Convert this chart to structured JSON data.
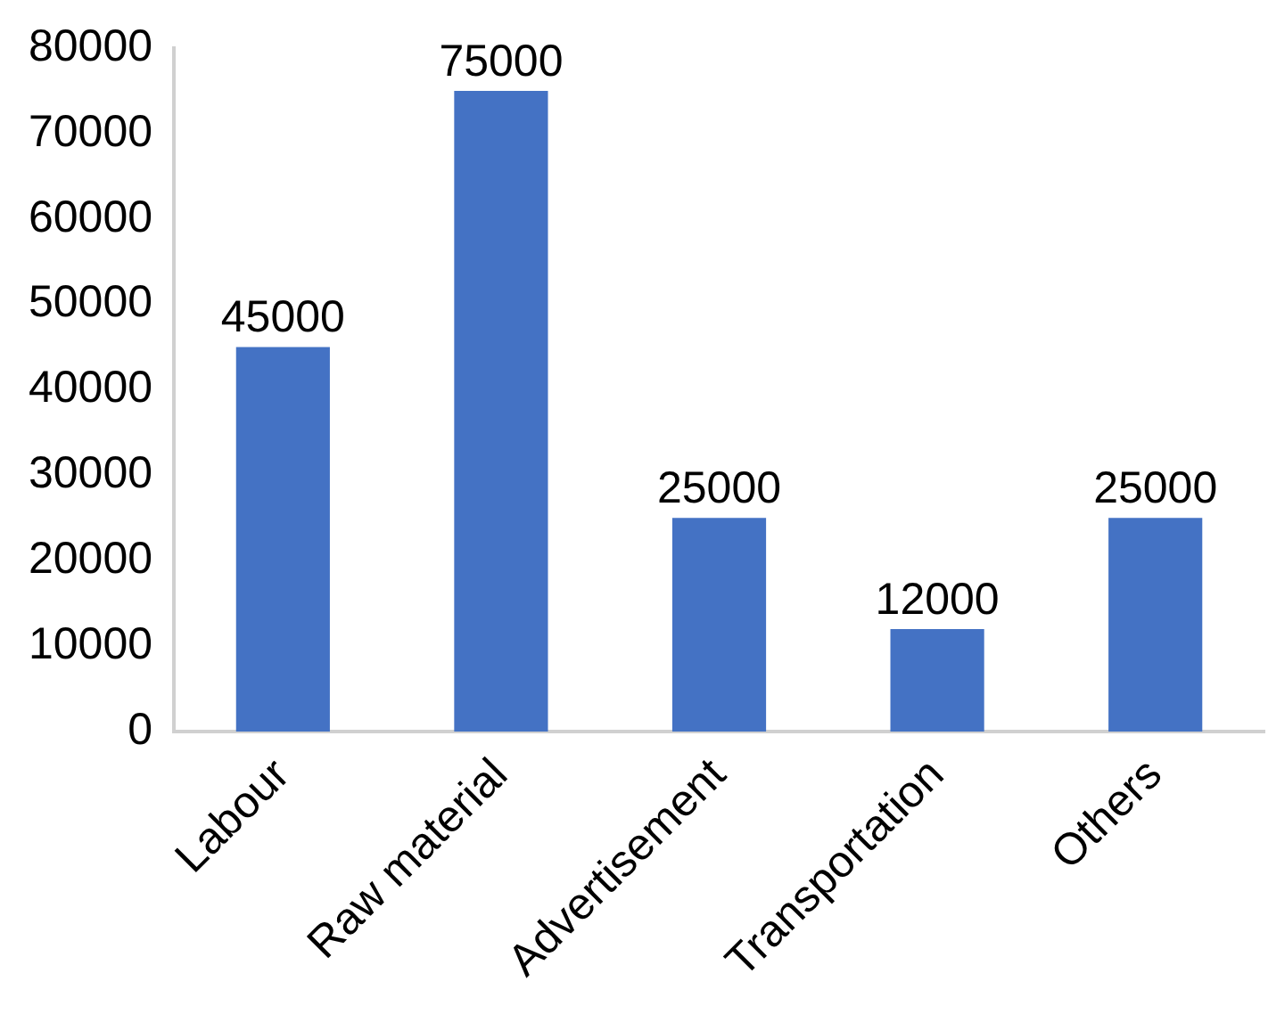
{
  "chart_data": {
    "type": "bar",
    "categories": [
      "Labour",
      "Raw material",
      "Advertisement",
      "Transportation",
      "Others"
    ],
    "values": [
      45000,
      75000,
      25000,
      12000,
      25000
    ],
    "color": "#4472c4",
    "ylim": [
      0,
      80000
    ],
    "yticks": [
      0,
      10000,
      20000,
      30000,
      40000,
      50000,
      60000,
      70000,
      80000
    ],
    "grid": false,
    "legend": false,
    "data_labels": true
  }
}
